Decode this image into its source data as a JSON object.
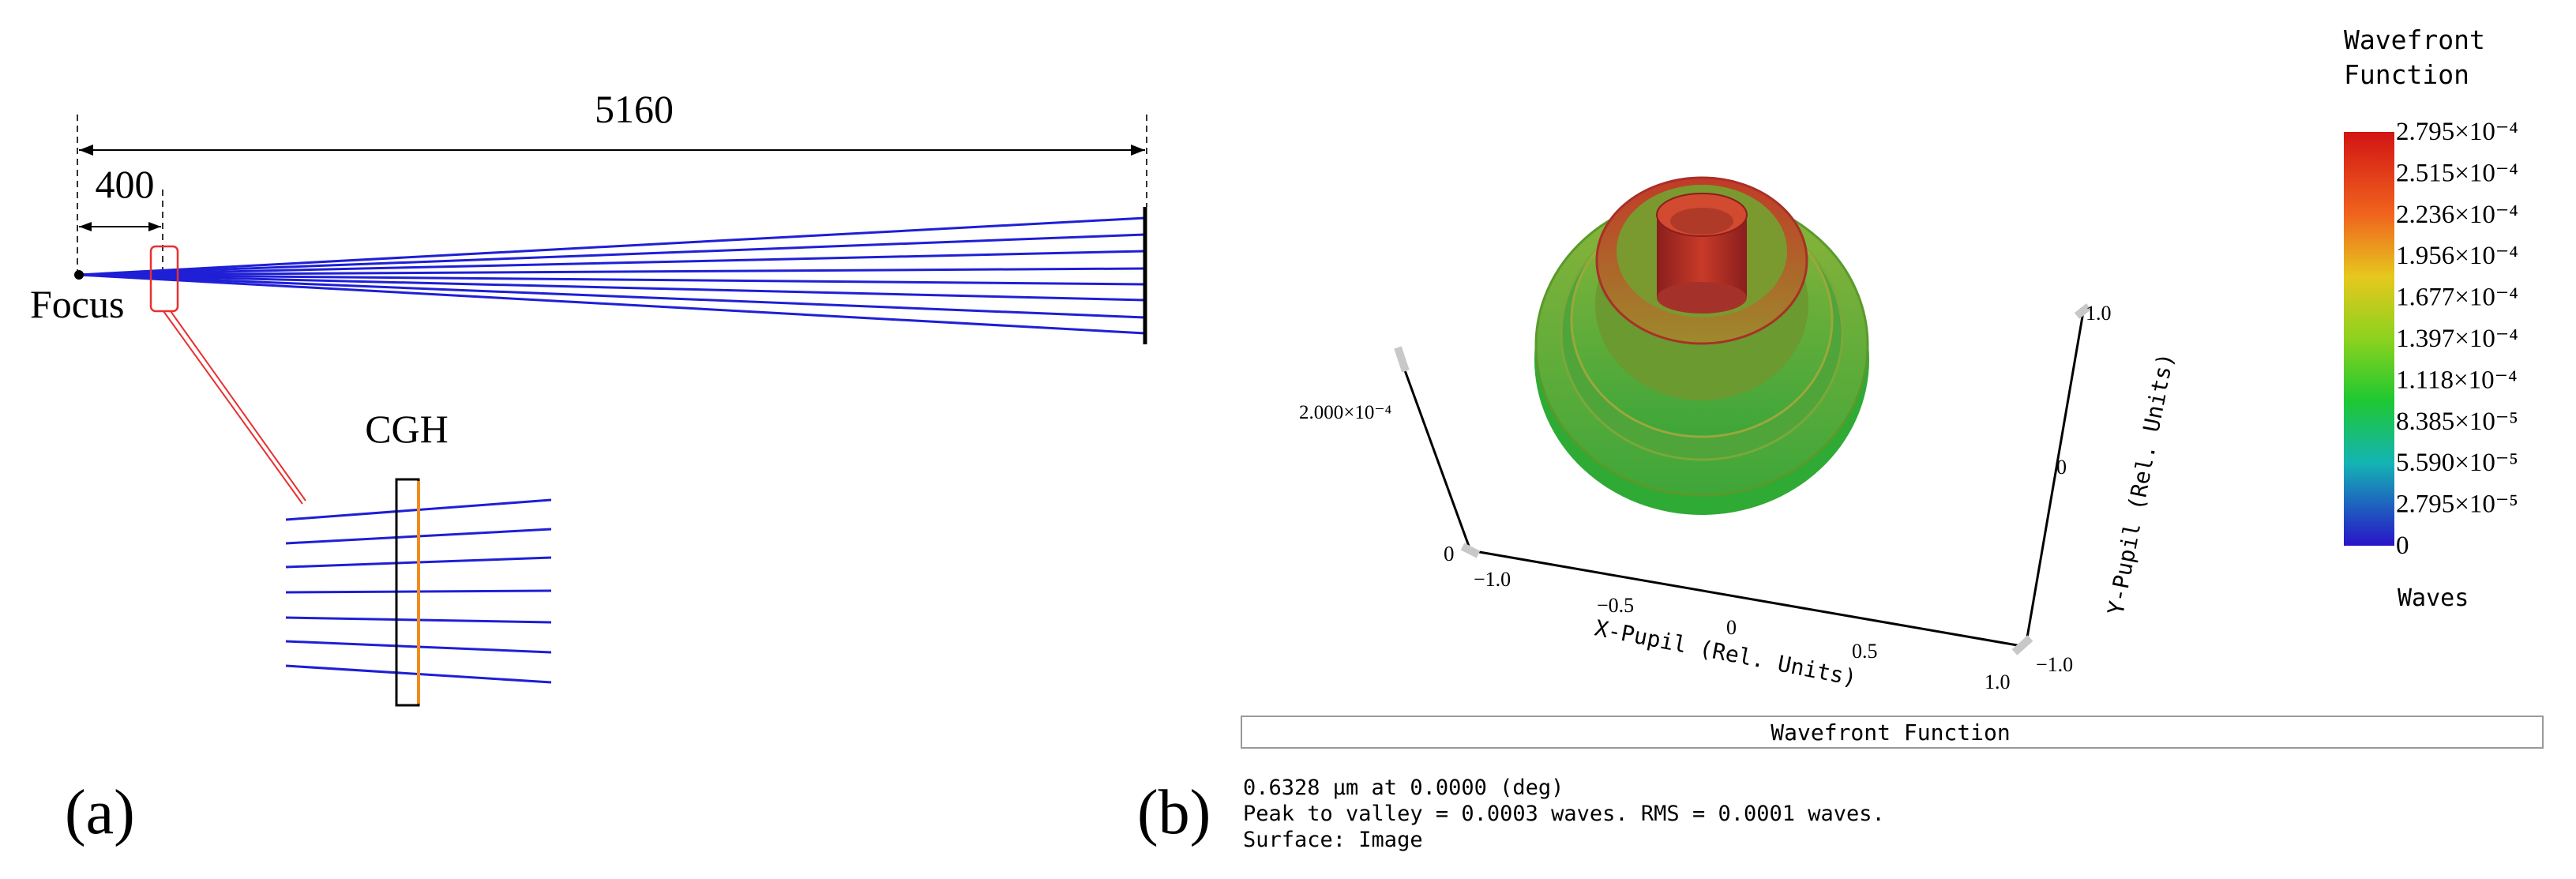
{
  "panel_a": {
    "panel_label": "(a)",
    "dim_total": "5160",
    "dim_near": "400",
    "focus_label": "Focus",
    "cgh_label": "CGH",
    "ray_color": "#1f1fd6",
    "zoom_box_color": "#e83030",
    "cgh_layer_color": "#f08c1e"
  },
  "panel_b": {
    "panel_label": "(b)",
    "legend_title_line1": "Wavefront",
    "legend_title_line2": "Function",
    "legend_ticks": [
      "2.795×10⁻⁴",
      "2.515×10⁻⁴",
      "2.236×10⁻⁴",
      "1.956×10⁻⁴",
      "1.677×10⁻⁴",
      "1.397×10⁻⁴",
      "1.118×10⁻⁴",
      "8.385×10⁻⁵",
      "5.590×10⁻⁵",
      "2.795×10⁻⁵",
      "0"
    ],
    "legend_unit": "Waves",
    "z_axis_top": "2.000×10⁻⁴",
    "z_axis_zero": "0",
    "x_ticks": [
      "−1.0",
      "−0.5",
      "0",
      "0.5",
      "1.0"
    ],
    "x_axis_label": "X-Pupil (Rel. Units)",
    "y_ticks": [
      "1.0",
      "0",
      "−1.0"
    ],
    "y_axis_label": "Y-Pupil (Rel. Units)",
    "plot_title": "Wavefront Function",
    "info_line1": "0.6328 µm at 0.0000 (deg)",
    "info_line2": "Peak to valley = 0.0003 waves. RMS = 0.0001 waves.",
    "info_line3": "Surface: Image"
  }
}
